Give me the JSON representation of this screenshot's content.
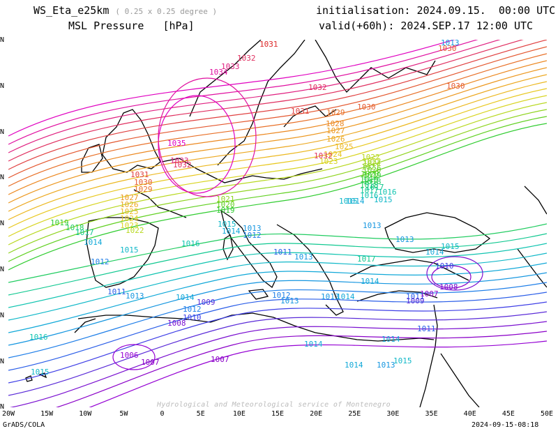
{
  "header": {
    "model": "WS_Eta_e25km",
    "resolution": "( 0.25 x 0.25 degree )",
    "field": "MSL Pressure",
    "unit": "[hPa]",
    "init": "initialisation: 2024.09.15.  00:00 UTC",
    "valid": "valid(+60h): 2024.SEP.17 12:00 UTC"
  },
  "footer": {
    "left": "GrADS/COLA",
    "right": "2024-09-15-08:18",
    "watermark": "Hydrological and Meteorological service of Montenegro"
  },
  "x_ticks": [
    "20W",
    "15W",
    "10W",
    "5W",
    "0",
    "5E",
    "10E",
    "15E",
    "20E",
    "25E",
    "30E",
    "35E",
    "40E",
    "45E",
    "50E"
  ],
  "y_ticks": [
    "N",
    "N",
    "N",
    "N",
    "N",
    "N",
    "N",
    "N",
    "N"
  ],
  "colors": {
    "1006": "#9400d3",
    "1007": "#8a00c8",
    "1008": "#7a10d0",
    "1009": "#5a2bd8",
    "1010": "#3e3ee6",
    "1011": "#2b5ee8",
    "1012": "#1e7ee8",
    "1013": "#1596e0",
    "1014": "#10a8d8",
    "1015": "#10b8c8",
    "1016": "#10c4b0",
    "1017": "#10c890",
    "1018": "#20cc60",
    "1019": "#30cc30",
    "1020": "#60d020",
    "1021": "#90d420",
    "1022": "#b8d820",
    "1023": "#d8d420",
    "1024": "#e8c820",
    "1025": "#ecb820",
    "1026": "#eca820",
    "1027": "#ec9820",
    "1028": "#ec8820",
    "1029": "#e87028",
    "1030": "#e45830",
    "1031": "#e04040",
    "1032": "#e03060",
    "1033": "#e02080",
    "1034": "#e010a0",
    "1035": "#e000c0"
  },
  "contour_labels": [
    {
      "v": "1031",
      "c": "1031"
    },
    {
      "v": "1033",
      "c": "1033"
    },
    {
      "v": "1032",
      "c": "1032"
    },
    {
      "v": "1034",
      "c": "1034"
    },
    {
      "v": "1032",
      "c": "1032"
    },
    {
      "v": "1031",
      "c": "1031"
    },
    {
      "v": "1030",
      "c": "1030"
    },
    {
      "v": "1029",
      "c": "1029"
    },
    {
      "v": "1028",
      "c": "1028"
    },
    {
      "v": "1027",
      "c": "1027"
    },
    {
      "v": "1026",
      "c": "1026"
    },
    {
      "v": "1025",
      "c": "1025"
    },
    {
      "v": "1024",
      "c": "1024"
    },
    {
      "v": "1023",
      "c": "1023"
    },
    {
      "v": "1022",
      "c": "1022"
    },
    {
      "v": "1021",
      "c": "1021"
    },
    {
      "v": "1020",
      "c": "1020"
    },
    {
      "v": "1019",
      "c": "1019"
    },
    {
      "v": "1018",
      "c": "1018"
    },
    {
      "v": "1017",
      "c": "1017"
    },
    {
      "v": "1016",
      "c": "1016"
    },
    {
      "v": "1015",
      "c": "1015"
    },
    {
      "v": "1035",
      "c": "1035"
    },
    {
      "v": "1033",
      "c": "1033"
    },
    {
      "v": "1032",
      "c": "1032"
    },
    {
      "v": "1031",
      "c": "1031"
    },
    {
      "v": "1030",
      "c": "1030"
    },
    {
      "v": "1029",
      "c": "1029"
    },
    {
      "v": "1027",
      "c": "1027"
    },
    {
      "v": "1026",
      "c": "1026"
    },
    {
      "v": "1025",
      "c": "1025"
    },
    {
      "v": "1024",
      "c": "1024"
    },
    {
      "v": "1023",
      "c": "1023"
    },
    {
      "v": "1022",
      "c": "1022"
    },
    {
      "v": "1019",
      "c": "1019"
    },
    {
      "v": "1018",
      "c": "1018"
    },
    {
      "v": "1017",
      "c": "1017"
    },
    {
      "v": "1014",
      "c": "1014"
    },
    {
      "v": "1015",
      "c": "1015"
    },
    {
      "v": "1016",
      "c": "1016"
    },
    {
      "v": "1012",
      "c": "1012"
    },
    {
      "v": "1011",
      "c": "1011"
    },
    {
      "v": "1013",
      "c": "1013"
    },
    {
      "v": "1014",
      "c": "1014"
    },
    {
      "v": "1010",
      "c": "1010"
    },
    {
      "v": "1012",
      "c": "1012"
    },
    {
      "v": "1009",
      "c": "1009"
    },
    {
      "v": "1008",
      "c": "1008"
    },
    {
      "v": "1006",
      "c": "1006"
    },
    {
      "v": "1007",
      "c": "1007"
    },
    {
      "v": "1007",
      "c": "1007"
    },
    {
      "v": "1016",
      "c": "1016"
    },
    {
      "v": "1015",
      "c": "1015"
    },
    {
      "v": "1021",
      "c": "1021"
    },
    {
      "v": "1020",
      "c": "1020"
    },
    {
      "v": "1019",
      "c": "1019"
    },
    {
      "v": "1015",
      "c": "1015"
    },
    {
      "v": "1014",
      "c": "1014"
    },
    {
      "v": "1013",
      "c": "1013"
    },
    {
      "v": "1012",
      "c": "1012"
    },
    {
      "v": "1011",
      "c": "1011"
    },
    {
      "v": "1014",
      "c": "1014"
    },
    {
      "v": "1013",
      "c": "1013"
    },
    {
      "v": "1012",
      "c": "1012"
    },
    {
      "v": "1013",
      "c": "1013"
    },
    {
      "v": "1013",
      "c": "1013"
    },
    {
      "v": "1014",
      "c": "1014"
    },
    {
      "v": "1011",
      "c": "1011"
    },
    {
      "v": "1014",
      "c": "1014"
    },
    {
      "v": "1017",
      "c": "1017"
    },
    {
      "v": "1013",
      "c": "1013"
    },
    {
      "v": "1022",
      "c": "1022"
    },
    {
      "v": "1021",
      "c": "1021"
    },
    {
      "v": "1020",
      "c": "1020"
    },
    {
      "v": "1019",
      "c": "1019"
    },
    {
      "v": "1018",
      "c": "1018"
    },
    {
      "v": "1017",
      "c": "1017"
    },
    {
      "v": "1016",
      "c": "1016"
    },
    {
      "v": "1015",
      "c": "1015"
    },
    {
      "v": "1014",
      "c": "1014"
    },
    {
      "v": "1013",
      "c": "1013"
    },
    {
      "v": "1013",
      "c": "1013"
    },
    {
      "v": "1015",
      "c": "1015"
    },
    {
      "v": "1014",
      "c": "1014"
    },
    {
      "v": "1010",
      "c": "1010"
    },
    {
      "v": "1008",
      "c": "1008"
    },
    {
      "v": "1007",
      "c": "1007"
    },
    {
      "v": "1009",
      "c": "1009"
    },
    {
      "v": "1011",
      "c": "1011"
    },
    {
      "v": "1015",
      "c": "1015"
    },
    {
      "v": "1014",
      "c": "1014"
    },
    {
      "v": "1014",
      "c": "1014"
    },
    {
      "v": "1013",
      "c": "1013"
    },
    {
      "v": "1030",
      "c": "1030"
    },
    {
      "v": "1030",
      "c": "1030"
    },
    {
      "v": "1032",
      "c": "1032"
    },
    {
      "v": "1031",
      "c": "1031"
    }
  ]
}
